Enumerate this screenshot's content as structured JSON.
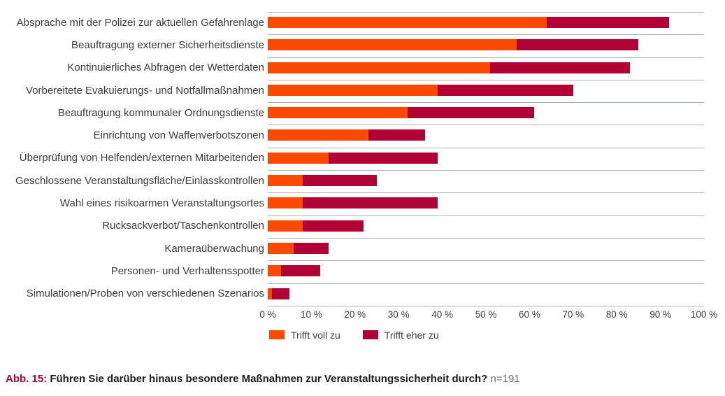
{
  "chart_data": {
    "type": "bar",
    "orientation": "horizontal",
    "stacked": true,
    "categories": [
      "Absprache mit der Polizei zur aktuellen Gefahrenlage",
      "Beauftragung externer Sicherheitsdienste",
      "Kontinuierliches Abfragen der Wetterdaten",
      "Vorbereitete Evakuierungs- und Notfallmaßnahmen",
      "Beauftragung kommunaler Ordnungsdienste",
      "Einrichtung von Waffenverbotszonen",
      "Überprüfung von Helfenden/externen Mitarbeitenden",
      "Geschlossene Veranstaltungsfläche/Einlasskontrollen",
      "Wahl eines risikoarmen Veranstaltungsortes",
      "Rucksackverbot/Taschenkontrollen",
      "Kameraüberwachung",
      "Personen- und Verhaltensspotter",
      "Simulationen/Proben von verschiedenen Szenarios"
    ],
    "series": [
      {
        "name": "Trifft voll zu",
        "color": "#fb4a00",
        "values": [
          64,
          57,
          51,
          39,
          32,
          23,
          14,
          8,
          8,
          8,
          6,
          3,
          1
        ]
      },
      {
        "name": "Trifft eher zu",
        "color": "#b00234",
        "values": [
          28,
          28,
          32,
          31,
          29,
          13,
          25,
          17,
          31,
          14,
          8,
          9,
          4
        ]
      }
    ],
    "xlim": [
      0,
      100
    ],
    "x_ticks": [
      "0 %",
      "10 %",
      "20 %",
      "30 %",
      "40 %",
      "50 %",
      "60 %",
      "70 %",
      "80 %",
      "90 %",
      "100 %"
    ],
    "grid": "row-separator-lines",
    "legend_position": "bottom-left"
  },
  "caption": {
    "prefix": "Abb. 15:",
    "question": "Führen Sie darüber hinaus besondere Maßnahmen zur Veranstaltungssicherheit durch?",
    "sample": "n=191"
  },
  "colors": {
    "voll_zu": "#fb4a00",
    "eher_zu": "#b00234",
    "separator_line": "#a9b0b4",
    "label_text": "#3c3c3b",
    "caption_accent": "#b00234"
  }
}
